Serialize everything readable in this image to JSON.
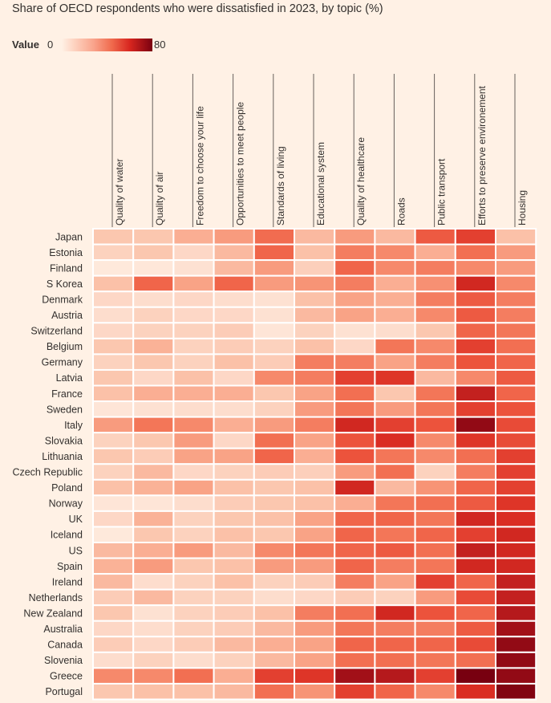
{
  "chart_data": {
    "type": "heatmap",
    "title": "Share of OECD respondents who were dissatisfied in 2023, by topic (%)",
    "legend": {
      "label": "Value",
      "min": 0,
      "max": 80,
      "min_label": "0",
      "max_label": "80"
    },
    "columns": [
      "Quality of water",
      "Quality of air",
      "Freedom to choose  your life",
      "Opportunities to meet people",
      "Standards of living",
      "Educational system",
      "Quality of healthcare",
      "Roads",
      "Public transport",
      "Efforts to preserve environement",
      "Housing"
    ],
    "rows": [
      "Japan",
      "Estonia",
      "Finland",
      "S Korea",
      "Denmark",
      "Austria",
      "Switzerland",
      "Belgium",
      "Germany",
      "Latvia",
      "France",
      "Sweden",
      "Italy",
      "Slovakia",
      "Lithuania",
      "Czech Republic",
      "Poland",
      "Norway",
      "UK",
      "Iceland",
      "US",
      "Spain",
      "Ireland",
      "Netherlands",
      "New Zealand",
      "Australia",
      "Canada",
      "Slovenia",
      "Greece",
      "Portugal"
    ],
    "values": [
      [
        18,
        18,
        25,
        30,
        43,
        22,
        30,
        22,
        48,
        55,
        20
      ],
      [
        14,
        18,
        12,
        22,
        45,
        20,
        38,
        35,
        25,
        42,
        30
      ],
      [
        4,
        5,
        8,
        22,
        30,
        15,
        45,
        35,
        38,
        35,
        30
      ],
      [
        20,
        45,
        28,
        45,
        30,
        32,
        38,
        25,
        33,
        62,
        35
      ],
      [
        12,
        10,
        12,
        10,
        8,
        20,
        28,
        25,
        38,
        48,
        38
      ],
      [
        10,
        14,
        12,
        12,
        8,
        22,
        28,
        25,
        35,
        48,
        38
      ],
      [
        12,
        14,
        14,
        16,
        6,
        14,
        8,
        10,
        18,
        45,
        40
      ],
      [
        18,
        24,
        14,
        16,
        14,
        20,
        12,
        40,
        35,
        55,
        42
      ],
      [
        14,
        18,
        14,
        20,
        16,
        38,
        38,
        28,
        38,
        50,
        45
      ],
      [
        18,
        12,
        20,
        12,
        35,
        38,
        55,
        58,
        22,
        35,
        48
      ],
      [
        20,
        25,
        25,
        25,
        18,
        28,
        42,
        18,
        40,
        65,
        45
      ],
      [
        6,
        8,
        10,
        10,
        14,
        30,
        40,
        30,
        40,
        55,
        50
      ],
      [
        30,
        40,
        35,
        25,
        30,
        38,
        62,
        55,
        50,
        75,
        52
      ],
      [
        14,
        18,
        30,
        12,
        42,
        28,
        50,
        60,
        35,
        58,
        52
      ],
      [
        18,
        16,
        28,
        28,
        45,
        25,
        50,
        40,
        35,
        42,
        55
      ],
      [
        14,
        22,
        12,
        14,
        16,
        15,
        30,
        42,
        14,
        38,
        55
      ],
      [
        20,
        24,
        28,
        20,
        18,
        20,
        62,
        22,
        32,
        45,
        55
      ],
      [
        6,
        6,
        10,
        16,
        18,
        20,
        25,
        40,
        42,
        48,
        58
      ],
      [
        12,
        24,
        14,
        18,
        20,
        28,
        45,
        45,
        40,
        62,
        60
      ],
      [
        4,
        18,
        14,
        20,
        18,
        28,
        45,
        40,
        45,
        55,
        62
      ],
      [
        22,
        25,
        30,
        22,
        35,
        40,
        45,
        48,
        42,
        65,
        62
      ],
      [
        24,
        30,
        18,
        20,
        30,
        30,
        45,
        38,
        40,
        62,
        62
      ],
      [
        22,
        10,
        14,
        20,
        14,
        16,
        38,
        28,
        55,
        45,
        65
      ],
      [
        16,
        22,
        14,
        14,
        10,
        12,
        16,
        14,
        30,
        52,
        65
      ],
      [
        18,
        8,
        14,
        16,
        20,
        38,
        42,
        62,
        50,
        45,
        68
      ],
      [
        12,
        10,
        14,
        16,
        22,
        30,
        40,
        38,
        38,
        48,
        72
      ],
      [
        16,
        12,
        16,
        22,
        25,
        28,
        45,
        45,
        45,
        52,
        75
      ],
      [
        10,
        14,
        10,
        14,
        22,
        28,
        42,
        42,
        40,
        42,
        75
      ],
      [
        35,
        35,
        42,
        25,
        55,
        58,
        72,
        68,
        55,
        80,
        75
      ],
      [
        18,
        20,
        20,
        22,
        42,
        32,
        55,
        45,
        35,
        60,
        78
      ]
    ]
  }
}
